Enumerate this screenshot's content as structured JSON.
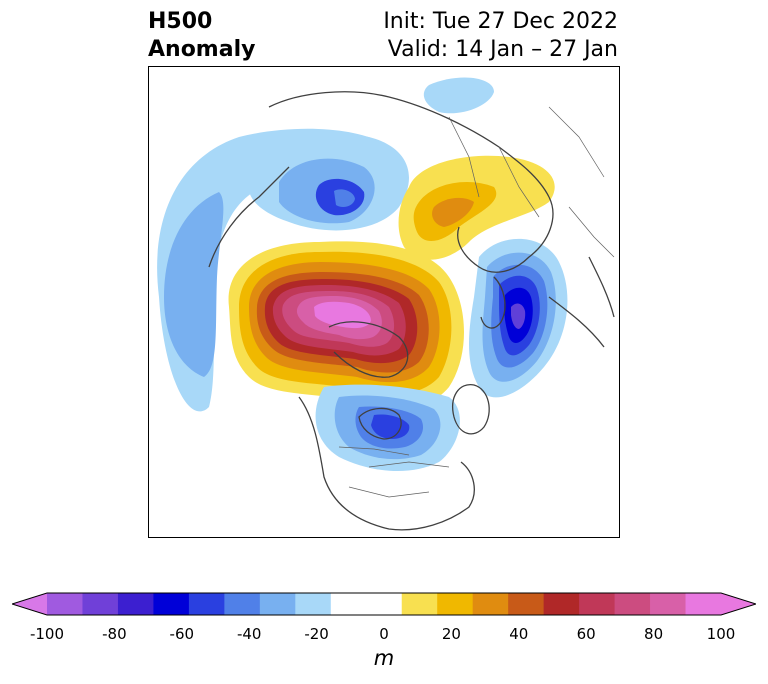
{
  "title": {
    "left_line1": "H500",
    "left_line2": "Anomaly",
    "right_line1": "Init: Tue 27 Dec 2022",
    "right_line2": "Valid: 14 Jan – 27 Jan"
  },
  "colorbar": {
    "units": "m",
    "ticks": [
      "-100",
      "-80",
      "-60",
      "-40",
      "-20",
      "0",
      "20",
      "40",
      "60",
      "80",
      "100"
    ],
    "tick_values": [
      -100,
      -80,
      -60,
      -40,
      -20,
      0,
      20,
      40,
      60,
      80,
      100
    ],
    "range": [
      -100,
      100
    ],
    "step": 10,
    "extend": "both",
    "under_color": "#d878e8",
    "over_color": "#e878e0",
    "colors": [
      "#a05ae0",
      "#7040d8",
      "#3c1fd0",
      "#0000d8",
      "#2a40e0",
      "#5080e8",
      "#78b0f0",
      "#a8d8f8",
      "#ffffff",
      "#ffffff",
      "#f8e050",
      "#f0b800",
      "#e08c10",
      "#c85a18",
      "#b02828",
      "#c03858",
      "#cc4c80",
      "#d860a8",
      "#e878e0"
    ]
  },
  "map": {
    "projection": "north-polar-stereographic",
    "colors": {
      "land_outline": "#404040",
      "neg_20": "#a8d8f8",
      "neg_30": "#78b0f0",
      "neg_40": "#5080e8",
      "neg_50": "#2a40e0",
      "neg_60": "#0000d8",
      "neg_70": "#6040d8",
      "pos_10": "#f8e050",
      "pos_20": "#f0b800",
      "pos_30": "#e08c10",
      "pos_40": "#c85a18",
      "pos_50": "#b02828",
      "pos_60": "#c03858",
      "pos_70": "#cc4c80",
      "pos_80": "#d860a8",
      "pos_90": "#e878e0"
    }
  }
}
